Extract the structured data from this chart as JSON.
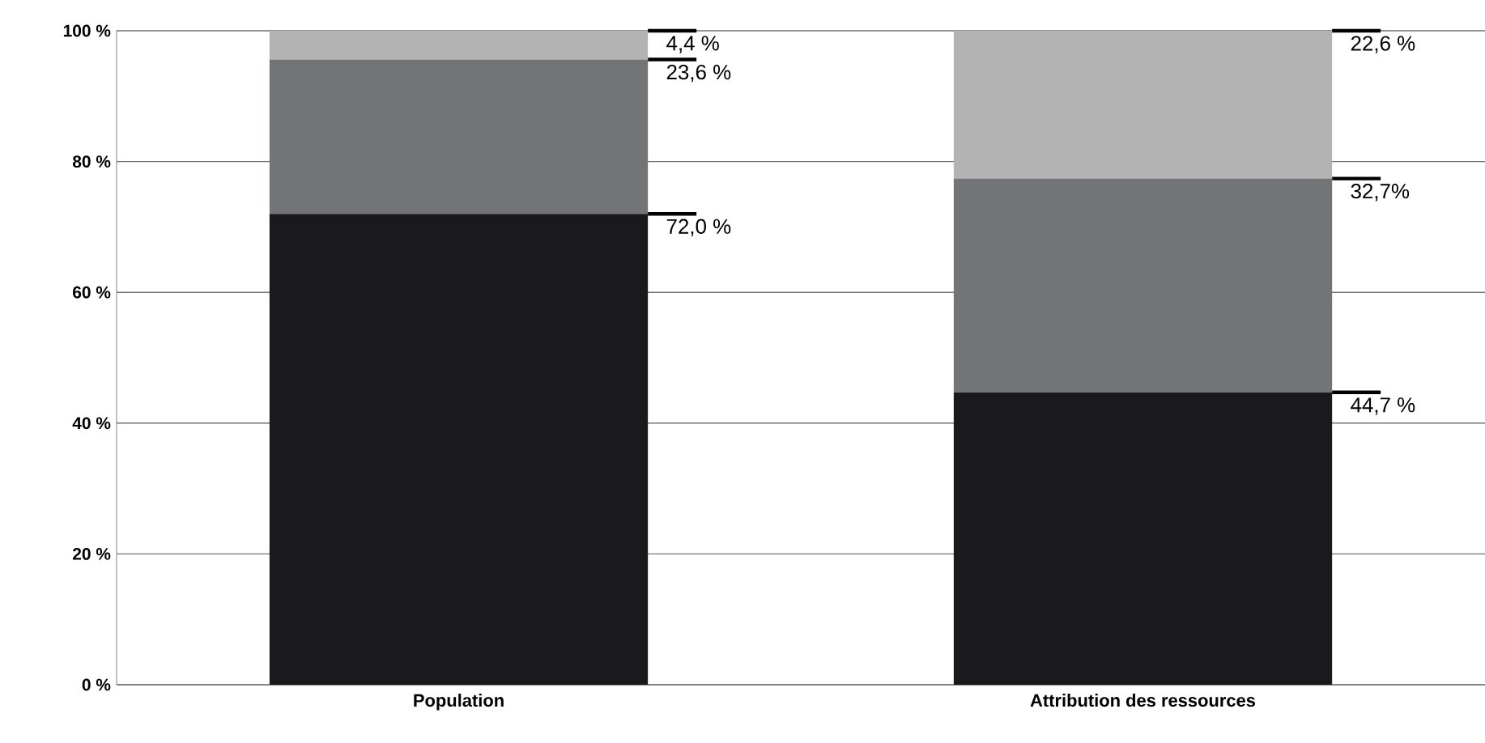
{
  "chart_data": {
    "type": "bar",
    "stacked": true,
    "categories": [
      "Population",
      "Attribution des ressources"
    ],
    "series": [
      {
        "color": "#1a191b",
        "values": [
          72.0,
          44.7
        ],
        "value_labels": [
          "72,0 %",
          "44,7 %"
        ]
      },
      {
        "color": "#737475",
        "values": [
          23.6,
          32.7
        ],
        "value_labels": [
          "23,6 %",
          "32,7%"
        ]
      },
      {
        "color": "#b3b3b4",
        "values": [
          4.4,
          22.6
        ],
        "value_labels": [
          "4,4 %",
          "22,6 %"
        ]
      }
    ],
    "ylim": [
      0,
      100
    ],
    "yticks": [
      {
        "value": 0,
        "label": "0 %"
      },
      {
        "value": 20,
        "label": "20 %"
      },
      {
        "value": 40,
        "label": "40 %"
      },
      {
        "value": 60,
        "label": "60 %"
      },
      {
        "value": 80,
        "label": "80 %"
      },
      {
        "value": 100,
        "label": "100 %"
      }
    ],
    "grid": "y"
  }
}
